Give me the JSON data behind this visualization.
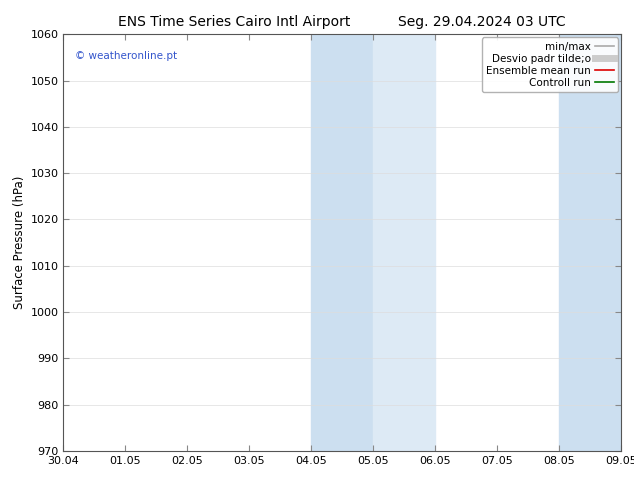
{
  "title_left": "ENS Time Series Cairo Intl Airport",
  "title_right": "Seg. 29.04.2024 03 UTC",
  "ylabel": "Surface Pressure (hPa)",
  "ylim": [
    970,
    1060
  ],
  "yticks": [
    970,
    980,
    990,
    1000,
    1010,
    1020,
    1030,
    1040,
    1050,
    1060
  ],
  "xtick_labels": [
    "30.04",
    "01.05",
    "02.05",
    "03.05",
    "04.05",
    "05.05",
    "06.05",
    "07.05",
    "08.05",
    "09.05"
  ],
  "shaded_bands": [
    {
      "xstart": 4.0,
      "xend": 5.0
    },
    {
      "xstart": 5.0,
      "xend": 6.0
    },
    {
      "xstart": 8.0,
      "xend": 9.0
    }
  ],
  "band_color_dark": "#ccdff0",
  "band_color_light": "#ddeaf5",
  "watermark": "© weatheronline.pt",
  "watermark_color": "#3355cc",
  "bg_color": "#ffffff",
  "plot_bg_color": "#ffffff",
  "grid_color": "#dddddd",
  "legend_entries": [
    {
      "label": "min/max",
      "color": "#aaaaaa",
      "lw": 1.2,
      "ls": "-"
    },
    {
      "label": "Desvio padr tilde;o",
      "color": "#cccccc",
      "lw": 5,
      "ls": "-"
    },
    {
      "label": "Ensemble mean run",
      "color": "#dd0000",
      "lw": 1.2,
      "ls": "-"
    },
    {
      "label": "Controll run",
      "color": "#007700",
      "lw": 1.2,
      "ls": "-"
    }
  ],
  "title_fontsize": 10,
  "tick_label_fontsize": 8,
  "ylabel_fontsize": 8.5,
  "legend_fontsize": 7.5
}
